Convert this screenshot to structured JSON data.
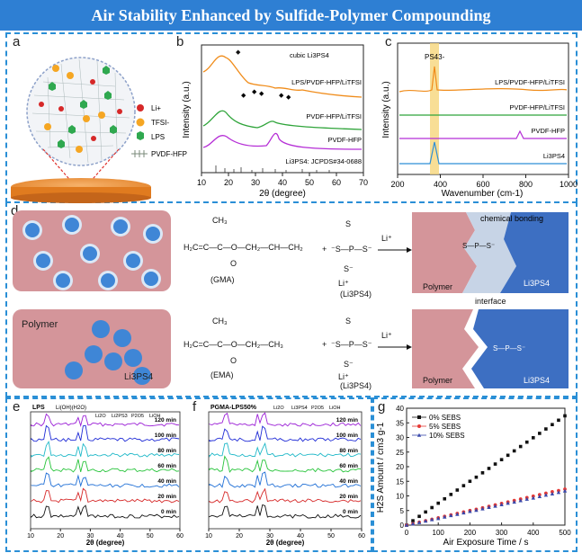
{
  "title": "Air Stability Enhanced by Sulfide-Polymer Compounding",
  "panels": {
    "a": "a",
    "b": "b",
    "c": "c",
    "d": "d",
    "e": "e",
    "f": "f",
    "g": "g"
  },
  "panel_a": {
    "legend": [
      "Li+",
      "TFSI-",
      "LPS",
      "PVDF-HFP"
    ]
  },
  "panel_b": {
    "ylabel": "Intensity (a.u.)",
    "xlabel": "2θ (degree)",
    "xticks": [
      "10",
      "20",
      "30",
      "40",
      "50",
      "60",
      "70"
    ],
    "legend_marker": "cubic Li3PS4",
    "traces": [
      "LPS/PVDF-HFP/LiTFSI",
      "PVDF-HFP/LiTFSI",
      "PVDF-HFP",
      "Li3PS4: JCPDS#34-0688"
    ]
  },
  "panel_c": {
    "ylabel": "Intensity (a.u.)",
    "xlabel": "Wavenumber (cm-1)",
    "xticks": [
      "200",
      "400",
      "600",
      "800",
      "1000"
    ],
    "peak_label": "PS43-",
    "traces": [
      "LPS/PVDF-HFP/LiTFSI",
      "PVDF-HFP/LiTFSI",
      "PVDF-HFP",
      "Li3PS4"
    ]
  },
  "panel_d": {
    "top": {
      "chem_bonding": "chemical bonding",
      "gma": "(GMA)",
      "lps": "(Li3PS4)",
      "polymer": "Polymer",
      "interface": "interface",
      "li3ps4": "Li3PS4"
    },
    "bottom": {
      "polymer_left": "Polymer",
      "li3ps4_left": "Li3PS4",
      "ema": "(EMA)",
      "lps": "(Li3PS4)",
      "polymer": "Polymer",
      "li3ps4": "Li3PS4"
    }
  },
  "panel_e": {
    "legend": "LPS",
    "legend_items": [
      "Li(OH)(H2O)",
      "Li2O",
      "Li2PS3",
      "P2O5",
      "LiOH"
    ],
    "times": [
      "120 min",
      "100 min",
      "80 min",
      "60 min",
      "40 min",
      "20 min",
      "0 min"
    ],
    "xlabel": "2θ (degree)",
    "xticks": [
      "10",
      "20",
      "30",
      "40",
      "50",
      "60"
    ]
  },
  "panel_f": {
    "legend": "PGMA-LPS50%",
    "legend_items": [
      "Li2O",
      "Li3PS4",
      "P2O5",
      "LiOH"
    ],
    "times": [
      "120 min",
      "100 min",
      "80 min",
      "60 min",
      "40 min",
      "20 min",
      "0 min"
    ],
    "xlabel": "2θ (degree)",
    "xticks": [
      "10",
      "20",
      "30",
      "40",
      "50",
      "60"
    ]
  },
  "chart_data": {
    "type": "scatter",
    "title": "",
    "xlabel": "Air Exposure Time / s",
    "ylabel": "H2S Amount / cm3 g-1",
    "xlim": [
      0,
      500
    ],
    "ylim": [
      0,
      40
    ],
    "xticks": [
      "0",
      "100",
      "200",
      "300",
      "400",
      "500"
    ],
    "yticks": [
      "0",
      "5",
      "10",
      "15",
      "20",
      "25",
      "30",
      "35",
      "40"
    ],
    "series": [
      {
        "name": "0% SEBS",
        "color": "#111111",
        "x": [
          0,
          20,
          40,
          60,
          80,
          100,
          120,
          140,
          160,
          180,
          200,
          220,
          240,
          260,
          280,
          300,
          320,
          340,
          360,
          380,
          400,
          420,
          440,
          460,
          480,
          500
        ],
        "values": [
          0,
          1.5,
          3,
          4.5,
          6,
          7.5,
          9,
          10.5,
          12,
          13.5,
          15,
          16.4,
          17.9,
          19.4,
          20.9,
          22.4,
          23.9,
          25.4,
          26.9,
          28.4,
          29.9,
          31.4,
          32.9,
          34.4,
          35.9,
          37.4
        ]
      },
      {
        "name": "5% SEBS",
        "color": "#e53935",
        "x": [
          0,
          20,
          40,
          60,
          80,
          100,
          120,
          140,
          160,
          180,
          200,
          220,
          240,
          260,
          280,
          300,
          320,
          340,
          360,
          380,
          400,
          420,
          440,
          460,
          480,
          500
        ],
        "values": [
          0,
          0.5,
          1,
          1.5,
          2,
          2.5,
          3,
          3.5,
          4,
          4.5,
          5,
          5.4,
          5.9,
          6.4,
          6.9,
          7.4,
          7.9,
          8.4,
          8.9,
          9.4,
          9.9,
          10.4,
          10.9,
          11.4,
          11.8,
          12.3
        ]
      },
      {
        "name": "10% SEBS",
        "color": "#3949ab",
        "x": [
          0,
          20,
          40,
          60,
          80,
          100,
          120,
          140,
          160,
          180,
          200,
          220,
          240,
          260,
          280,
          300,
          320,
          340,
          360,
          380,
          400,
          420,
          440,
          460,
          480,
          500
        ],
        "values": [
          0,
          0.45,
          0.9,
          1.4,
          1.9,
          2.3,
          2.8,
          3.3,
          3.7,
          4.2,
          4.7,
          5.1,
          5.6,
          6.1,
          6.5,
          7,
          7.5,
          7.9,
          8.4,
          8.9,
          9.3,
          9.8,
          10.3,
          10.7,
          11.2,
          11.7
        ]
      }
    ],
    "legend_position": "top-left"
  }
}
